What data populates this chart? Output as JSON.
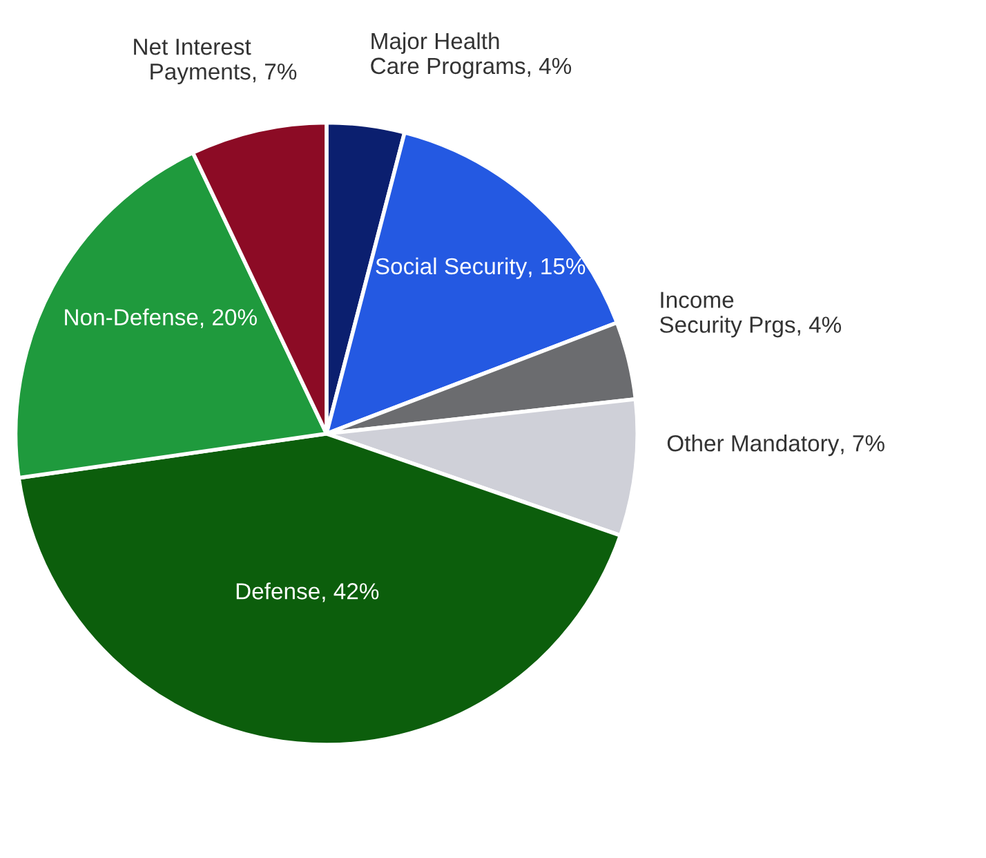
{
  "chart_data": {
    "type": "pie",
    "categories": [
      "Major Health Care Programs",
      "Social Security",
      "Income Security Prgs",
      "Other Mandatory",
      "Defense",
      "Non-Defense",
      "Net Interest Payments"
    ],
    "values": [
      4,
      15,
      4,
      7,
      42,
      20,
      7
    ],
    "value_labels": [
      ", 4%",
      ", 15%",
      ", 4%",
      ", 7%",
      ", 42%",
      ", 20%",
      ", 7%"
    ],
    "colors": [
      "#0b1f6f",
      "#2459e2",
      "#6b6c6f",
      "#cfd0d8",
      "#0c5e0c",
      "#1f9a3d",
      "#8c0b25"
    ]
  }
}
